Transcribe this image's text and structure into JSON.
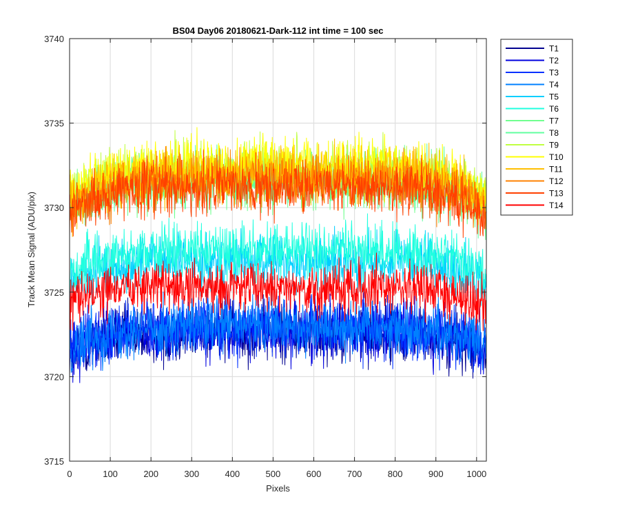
{
  "chart_data": {
    "type": "line",
    "title": "BS04 Day06 20180621-Dark-112 int time = 100 sec",
    "xlabel": "Pixels",
    "ylabel": "Track Mean Signal (ADU/pix)",
    "xlim": [
      0,
      1024
    ],
    "ylim": [
      3715,
      3740
    ],
    "x_ticks": [
      0,
      100,
      200,
      300,
      400,
      500,
      600,
      700,
      800,
      900,
      1000
    ],
    "y_ticks": [
      3715,
      3720,
      3725,
      3730,
      3735,
      3740
    ],
    "grid": true,
    "legend_position": "outside-right",
    "x_range_note": "x = 0..1024 (pixel index)",
    "series": [
      {
        "name": "T1",
        "color": "#00008f",
        "mean": 3722.6,
        "edge_drop": 1.4,
        "noise": 1.2
      },
      {
        "name": "T2",
        "color": "#0000df",
        "mean": 3722.8,
        "edge_drop": 1.4,
        "noise": 1.2
      },
      {
        "name": "T3",
        "color": "#0030ff",
        "mean": 3722.9,
        "edge_drop": 1.3,
        "noise": 1.2
      },
      {
        "name": "T4",
        "color": "#0080ff",
        "mean": 3723.0,
        "edge_drop": 1.3,
        "noise": 1.2
      },
      {
        "name": "T5",
        "color": "#00cfff",
        "mean": 3726.8,
        "edge_drop": 1.4,
        "noise": 1.1
      },
      {
        "name": "T6",
        "color": "#20ffdf",
        "mean": 3727.5,
        "edge_drop": 1.4,
        "noise": 1.1
      },
      {
        "name": "T7",
        "color": "#70ff8f",
        "mean": 3731.5,
        "edge_drop": 1.8,
        "noise": 1.1
      },
      {
        "name": "T8",
        "color": "#60ff9f",
        "mean": 3731.8,
        "edge_drop": 1.8,
        "noise": 1.1
      },
      {
        "name": "T9",
        "color": "#bfff40",
        "mean": 3732.3,
        "edge_drop": 1.8,
        "noise": 1.1
      },
      {
        "name": "T10",
        "color": "#ffff00",
        "mean": 3732.5,
        "edge_drop": 1.9,
        "noise": 1.1
      },
      {
        "name": "T11",
        "color": "#ffbf00",
        "mean": 3732.0,
        "edge_drop": 1.8,
        "noise": 1.1
      },
      {
        "name": "T12",
        "color": "#ff8000",
        "mean": 3731.6,
        "edge_drop": 1.8,
        "noise": 1.1
      },
      {
        "name": "T13",
        "color": "#ff4000",
        "mean": 3731.2,
        "edge_drop": 1.8,
        "noise": 1.1
      },
      {
        "name": "T14",
        "color": "#ff0000",
        "mean": 3725.3,
        "edge_drop": 1.0,
        "noise": 1.1
      }
    ]
  }
}
